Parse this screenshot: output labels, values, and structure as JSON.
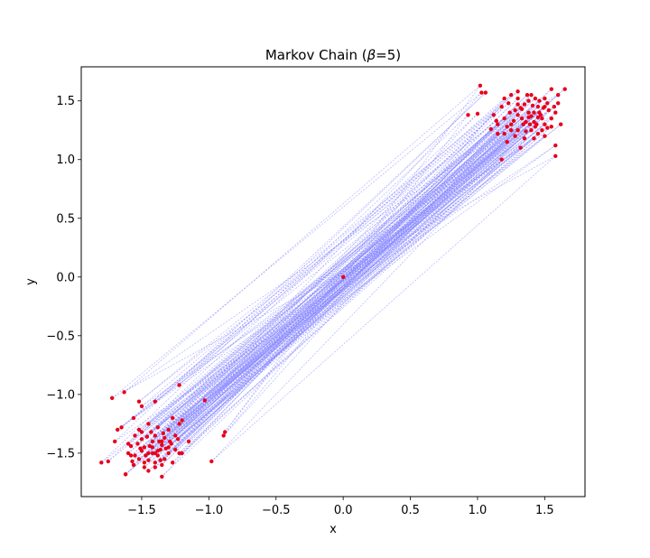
{
  "chart_data": {
    "type": "scatter",
    "title_prefix": "Markov Chain (",
    "title_beta": "β",
    "title_suffix": "=5)",
    "xlabel": "x",
    "ylabel": "y",
    "xlim": [
      -1.95,
      1.8
    ],
    "ylim": [
      -1.87,
      1.79
    ],
    "xticks": [
      -1.5,
      -1.0,
      -0.5,
      0.0,
      0.5,
      1.0,
      1.5
    ],
    "xtick_labels": [
      "−1.5",
      "−1.0",
      "−0.5",
      "0.0",
      "0.5",
      "1.0",
      "1.5"
    ],
    "yticks": [
      -1.5,
      -1.0,
      -0.5,
      0.0,
      0.5,
      1.0,
      1.5
    ],
    "ytick_labels": [
      "−1.5",
      "−1.0",
      "−0.5",
      "0.0",
      "0.5",
      "1.0",
      "1.5"
    ],
    "grid": false,
    "line_color": "#8a8aff",
    "point_color": "#e8001c",
    "points": [
      [
        0.0,
        0.0
      ],
      [
        1.42,
        1.32
      ],
      [
        -1.45,
        -1.5
      ],
      [
        1.5,
        1.45
      ],
      [
        -1.35,
        -1.4
      ],
      [
        1.28,
        1.2
      ],
      [
        -1.52,
        -1.3
      ],
      [
        1.38,
        1.5
      ],
      [
        -1.4,
        -1.58
      ],
      [
        1.55,
        1.28
      ],
      [
        -1.3,
        -1.45
      ],
      [
        1.2,
        1.35
      ],
      [
        -1.6,
        -1.42
      ],
      [
        1.45,
        1.22
      ],
      [
        -1.48,
        -1.62
      ],
      [
        1.33,
        1.43
      ],
      [
        -1.25,
        -1.35
      ],
      [
        1.6,
        1.55
      ],
      [
        -1.55,
        -1.52
      ],
      [
        1.25,
        1.25
      ],
      [
        -1.38,
        -1.28
      ],
      [
        1.47,
        1.38
      ],
      [
        -1.62,
        -1.68
      ],
      [
        1.35,
        1.18
      ],
      [
        -1.42,
        -1.45
      ],
      [
        1.52,
        1.48
      ],
      [
        -1.33,
        -1.55
      ],
      [
        1.15,
        1.3
      ],
      [
        -1.5,
        -1.38
      ],
      [
        1.4,
        1.55
      ],
      [
        -1.2,
        -1.5
      ],
      [
        1.58,
        1.4
      ],
      [
        -1.45,
        -1.25
      ],
      [
        1.3,
        1.38
      ],
      [
        -1.57,
        -1.57
      ],
      [
        1.43,
        1.28
      ],
      [
        -1.28,
        -1.42
      ],
      [
        1.5,
        1.2
      ],
      [
        -1.4,
        -1.35
      ],
      [
        1.18,
        1.45
      ],
      [
        -1.65,
        -1.28
      ],
      [
        1.36,
        1.32
      ],
      [
        -1.35,
        -1.6
      ],
      [
        1.55,
        1.6
      ],
      [
        -1.48,
        -1.45
      ],
      [
        1.22,
        1.15
      ],
      [
        -1.22,
        -1.25
      ],
      [
        1.45,
        1.45
      ],
      [
        -1.52,
        -1.55
      ],
      [
        1.3,
        1.52
      ],
      [
        -1.38,
        -1.48
      ],
      [
        1.62,
        1.3
      ],
      [
        -1.3,
        -1.3
      ],
      [
        1.4,
        1.25
      ],
      [
        -1.6,
        -1.5
      ],
      [
        1.12,
        1.38
      ],
      [
        -1.42,
        -1.4
      ],
      [
        1.48,
        1.35
      ],
      [
        -1.27,
        -1.58
      ],
      [
        1.35,
        1.47
      ],
      [
        -1.55,
        -1.35
      ],
      [
        1.25,
        1.3
      ],
      [
        -1.45,
        -1.65
      ],
      [
        1.57,
        1.45
      ],
      [
        -1.33,
        -1.37
      ],
      [
        1.42,
        1.4
      ],
      [
        -1.5,
        -1.48
      ],
      [
        1.3,
        1.25
      ],
      [
        -1.38,
        -1.52
      ],
      [
        1.5,
        1.3
      ],
      [
        -1.58,
        -1.44
      ],
      [
        1.2,
        1.22
      ],
      [
        -1.25,
        -1.47
      ],
      [
        1.46,
        1.5
      ],
      [
        -1.43,
        -1.32
      ],
      [
        1.38,
        1.36
      ],
      [
        -1.35,
        -1.43
      ],
      [
        1.53,
        1.42
      ],
      [
        -1.48,
        -1.58
      ],
      [
        1.28,
        1.42
      ],
      [
        -1.4,
        -1.5
      ],
      [
        1.44,
        1.3
      ],
      [
        -1.3,
        -1.5
      ],
      [
        1.36,
        1.24
      ],
      [
        -1.53,
        -1.42
      ],
      [
        1.5,
        1.52
      ],
      [
        -1.36,
        -1.56
      ],
      [
        1.24,
        1.4
      ],
      [
        -1.46,
        -1.36
      ],
      [
        1.41,
        1.46
      ],
      [
        -1.56,
        -1.6
      ],
      [
        1.34,
        1.3
      ],
      [
        -1.32,
        -1.46
      ],
      [
        1.48,
        1.25
      ],
      [
        -1.44,
        -1.44
      ],
      [
        1.27,
        1.33
      ],
      [
        -1.5,
        -1.32
      ],
      [
        1.43,
        1.52
      ],
      [
        -1.37,
        -1.4
      ],
      [
        1.55,
        1.35
      ],
      [
        -1.23,
        -1.38
      ],
      [
        1.39,
        1.3
      ],
      [
        -1.47,
        -1.52
      ],
      [
        1.3,
        1.47
      ],
      [
        -1.4,
        -1.62
      ],
      [
        1.46,
        1.4
      ],
      [
        -1.34,
        -1.33
      ],
      [
        1.52,
        1.27
      ],
      [
        -1.58,
        -1.52
      ],
      [
        1.33,
        1.35
      ],
      [
        -1.42,
        -1.5
      ],
      [
        1.37,
        1.55
      ],
      [
        -1.29,
        -1.4
      ],
      [
        1.45,
        1.36
      ],
      [
        -1.51,
        -1.46
      ],
      [
        1.22,
        1.28
      ],
      [
        -1.45,
        -1.56
      ],
      [
        1.49,
        1.44
      ],
      [
        -1.36,
        -1.47
      ],
      [
        1.4,
        1.37
      ],
      [
        -1.2,
        -1.22
      ],
      [
        1.03,
        1.57
      ],
      [
        -1.72,
        -1.03
      ],
      [
        1.58,
        1.03
      ],
      [
        -0.98,
        -1.57
      ],
      [
        1.18,
        1.0
      ],
      [
        -1.8,
        -1.58
      ],
      [
        0.93,
        1.38
      ],
      [
        -0.88,
        -1.32
      ],
      [
        1.02,
        1.63
      ],
      [
        -1.63,
        -0.98
      ],
      [
        1.65,
        1.6
      ],
      [
        -1.75,
        -1.57
      ],
      [
        1.0,
        1.39
      ],
      [
        -1.03,
        -1.05
      ],
      [
        1.58,
        1.12
      ],
      [
        -1.7,
        -1.4
      ],
      [
        1.06,
        1.57
      ],
      [
        -1.22,
        -0.92
      ],
      [
        1.2,
        1.52
      ],
      [
        -0.89,
        -1.35
      ],
      [
        1.15,
        1.22
      ],
      [
        -1.15,
        -1.4
      ],
      [
        1.25,
        1.55
      ],
      [
        -1.5,
        -1.1
      ],
      [
        1.32,
        1.1
      ],
      [
        -1.56,
        -1.2
      ],
      [
        1.3,
        1.58
      ],
      [
        -1.52,
        -1.06
      ],
      [
        1.14,
        1.33
      ],
      [
        -1.68,
        -1.3
      ],
      [
        1.6,
        1.48
      ],
      [
        -1.35,
        -1.7
      ],
      [
        1.1,
        1.26
      ],
      [
        -1.22,
        -1.5
      ],
      [
        1.42,
        1.18
      ],
      [
        -1.62,
        -1.68
      ],
      [
        1.23,
        1.48
      ],
      [
        -1.4,
        -1.06
      ],
      [
        1.32,
        1.44
      ],
      [
        -1.27,
        -1.2
      ],
      [
        1.38,
        1.4
      ]
    ]
  }
}
